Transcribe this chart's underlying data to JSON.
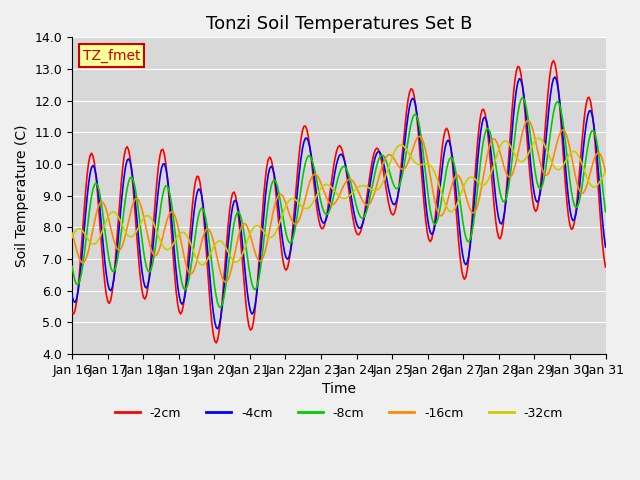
{
  "title": "Tonzi Soil Temperatures Set B",
  "xlabel": "Time",
  "ylabel": "Soil Temperature (C)",
  "ylim": [
    4.0,
    14.0
  ],
  "yticks": [
    4.0,
    5.0,
    6.0,
    7.0,
    8.0,
    9.0,
    10.0,
    11.0,
    12.0,
    13.0,
    14.0
  ],
  "xtick_labels": [
    "Jan 16",
    "Jan 17",
    "Jan 18",
    "Jan 19",
    "Jan 20",
    "Jan 21",
    "Jan 22",
    "Jan 23",
    "Jan 24",
    "Jan 25",
    "Jan 26",
    "Jan 27",
    "Jan 28",
    "Jan 29",
    "Jan 30",
    "Jan 31"
  ],
  "legend_labels": [
    "-2cm",
    "-4cm",
    "-8cm",
    "-16cm",
    "-32cm"
  ],
  "line_colors": [
    "#ff0000",
    "#0000ff",
    "#00cc00",
    "#ff8800",
    "#cccc00"
  ],
  "annotation_text": "TZ_fmet",
  "annotation_color": "#cc0000",
  "annotation_bg": "#ffff99",
  "fig_bg_color": "#f0f0f0",
  "plot_bg_color": "#d8d8d8",
  "grid_color": "#ffffff",
  "title_fontsize": 13,
  "label_fontsize": 10,
  "tick_fontsize": 9,
  "n_days": 15,
  "n_pts": 360
}
